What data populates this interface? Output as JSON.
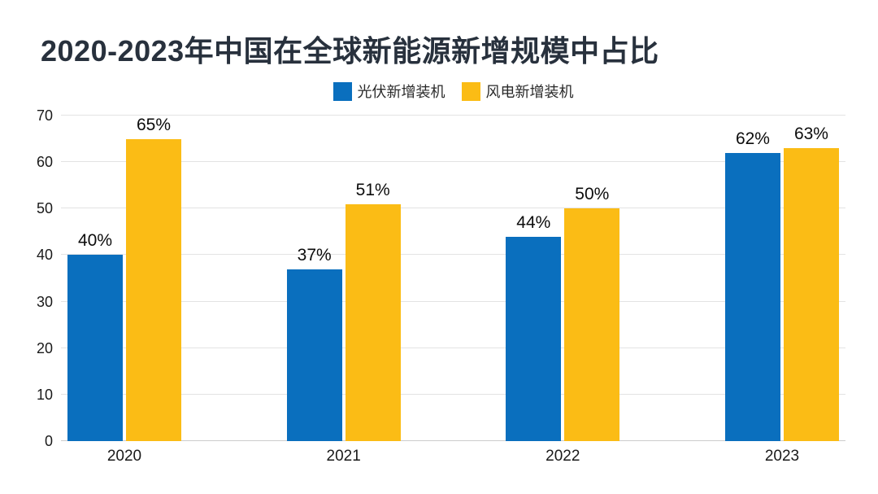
{
  "title": "2020-2023年中国在全球新能源新增规模中占比",
  "legend": [
    {
      "label": "光伏新增装机",
      "color": "#0a6fbe"
    },
    {
      "label": "风电新增装机",
      "color": "#fbbc15"
    }
  ],
  "chart_data": {
    "type": "bar",
    "title": "2020-2023年中国在全球新能源新增规模中占比",
    "categories": [
      "2020",
      "2021",
      "2022",
      "2023"
    ],
    "series": [
      {
        "name": "光伏新增装机",
        "color": "#0a6fbe",
        "values": [
          40,
          37,
          44,
          62
        ]
      },
      {
        "name": "风电新增装机",
        "color": "#fbbc15",
        "values": [
          65,
          51,
          50,
          63
        ]
      }
    ],
    "value_labels": [
      [
        "40%",
        "37%",
        "44%",
        "62%"
      ],
      [
        "65%",
        "51%",
        "50%",
        "63%"
      ]
    ],
    "unit": "%",
    "ylim": [
      0,
      70
    ],
    "yticks": [
      0,
      10,
      20,
      30,
      40,
      50,
      60,
      70
    ],
    "grid": true,
    "legend_position": "top-center"
  },
  "colors": {
    "background": "#ffffff",
    "title_text": "#28313d",
    "gridline": "#e3e3e3",
    "axis_line": "#cccccc",
    "tick_text": "#1a1a1a",
    "value_text": "#0c0c0c",
    "pv_blue": "#0a6fbe",
    "wind_yellow": "#fbbc15"
  }
}
